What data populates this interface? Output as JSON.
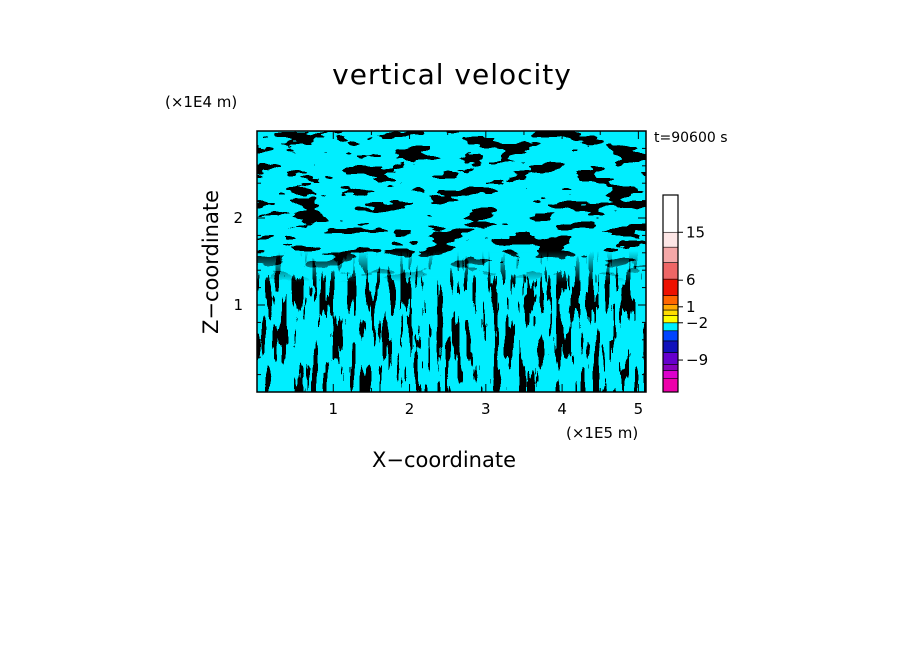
{
  "chart_data": {
    "type": "heatmap",
    "title": "vertical velocity",
    "xlabel": "X−coordinate",
    "ylabel": "Z−coordinate",
    "x_multiplier_label": "(×1E5 m)",
    "z_multiplier_label": "(×1E4 m)",
    "time_label": "t=90600 s",
    "xlim": [
      0,
      5.1
    ],
    "ylim": [
      0,
      3.0
    ],
    "x_ticks": [
      "1",
      "2",
      "3",
      "4",
      "5"
    ],
    "y_ticks": [
      "1",
      "2"
    ],
    "dominant_colors": {
      "positive_small": "#ffff00",
      "negative_small": "#00eeff"
    },
    "colorbar": {
      "levels": [
        {
          "color": "#ee00aa"
        },
        {
          "color": "#dd00cc"
        },
        {
          "color": "#8800bb"
        },
        {
          "color": "#6600cc"
        },
        {
          "color": "#1111bb"
        },
        {
          "color": "#0044ff"
        },
        {
          "color": "#00eeff"
        },
        {
          "color": "#ffff00"
        },
        {
          "color": "#ffdd00"
        },
        {
          "color": "#ffaa00"
        },
        {
          "color": "#ff6600"
        },
        {
          "color": "#ee1100"
        },
        {
          "color": "#ee6666"
        },
        {
          "color": "#f5a8a8"
        },
        {
          "color": "#fde6e6"
        }
      ],
      "tick_labels": [
        {
          "label": "15",
          "value": 15
        },
        {
          "label": "6",
          "value": 6
        },
        {
          "label": "1",
          "value": 1
        },
        {
          "label": "−2",
          "value": -2
        },
        {
          "label": "−9",
          "value": -9
        }
      ]
    }
  }
}
